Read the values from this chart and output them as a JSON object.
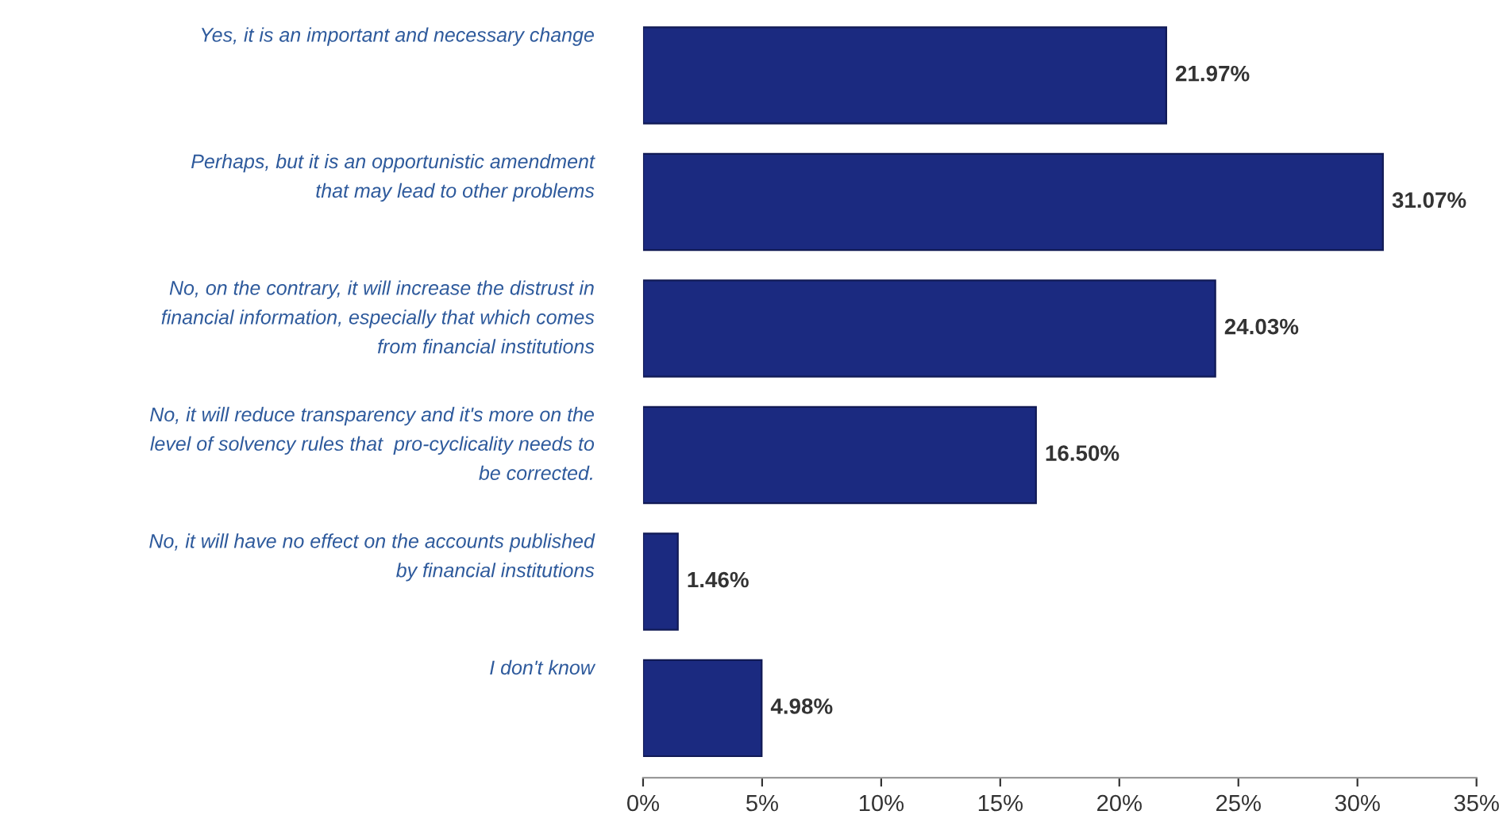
{
  "chart_data": {
    "type": "bar",
    "orientation": "horizontal",
    "categories": [
      "Yes, it is an important and necessary change",
      "Perhaps, but it is an opportunistic amendment\nthat may lead to other problems",
      "No, on the contrary, it will increase the distrust in\nfinancial information, especially that which comes\nfrom financial institutions",
      "No, it will reduce transparency and it's more on the\nlevel of solvency rules that  pro-cyclicality needs to\nbe corrected.",
      "No, it will have no effect on the accounts published\nby financial institutions",
      "I don't know"
    ],
    "values": [
      21.97,
      31.07,
      24.03,
      16.5,
      1.46,
      4.98
    ],
    "value_labels": [
      "21.97%",
      "31.07%",
      "24.03%",
      "16.50%",
      "1.46%",
      "4.98%"
    ],
    "color": "#1b2a80",
    "xlim": [
      0,
      35
    ],
    "xticks": [
      {
        "value": 0,
        "label": "0%"
      },
      {
        "value": 5,
        "label": "5%"
      },
      {
        "value": 10,
        "label": "10%"
      },
      {
        "value": 15,
        "label": "15%"
      },
      {
        "value": 20,
        "label": "20%"
      },
      {
        "value": 25,
        "label": "25%"
      },
      {
        "value": 30,
        "label": "30%"
      },
      {
        "value": 35,
        "label": "35%"
      }
    ],
    "grid": false,
    "legend": false
  }
}
